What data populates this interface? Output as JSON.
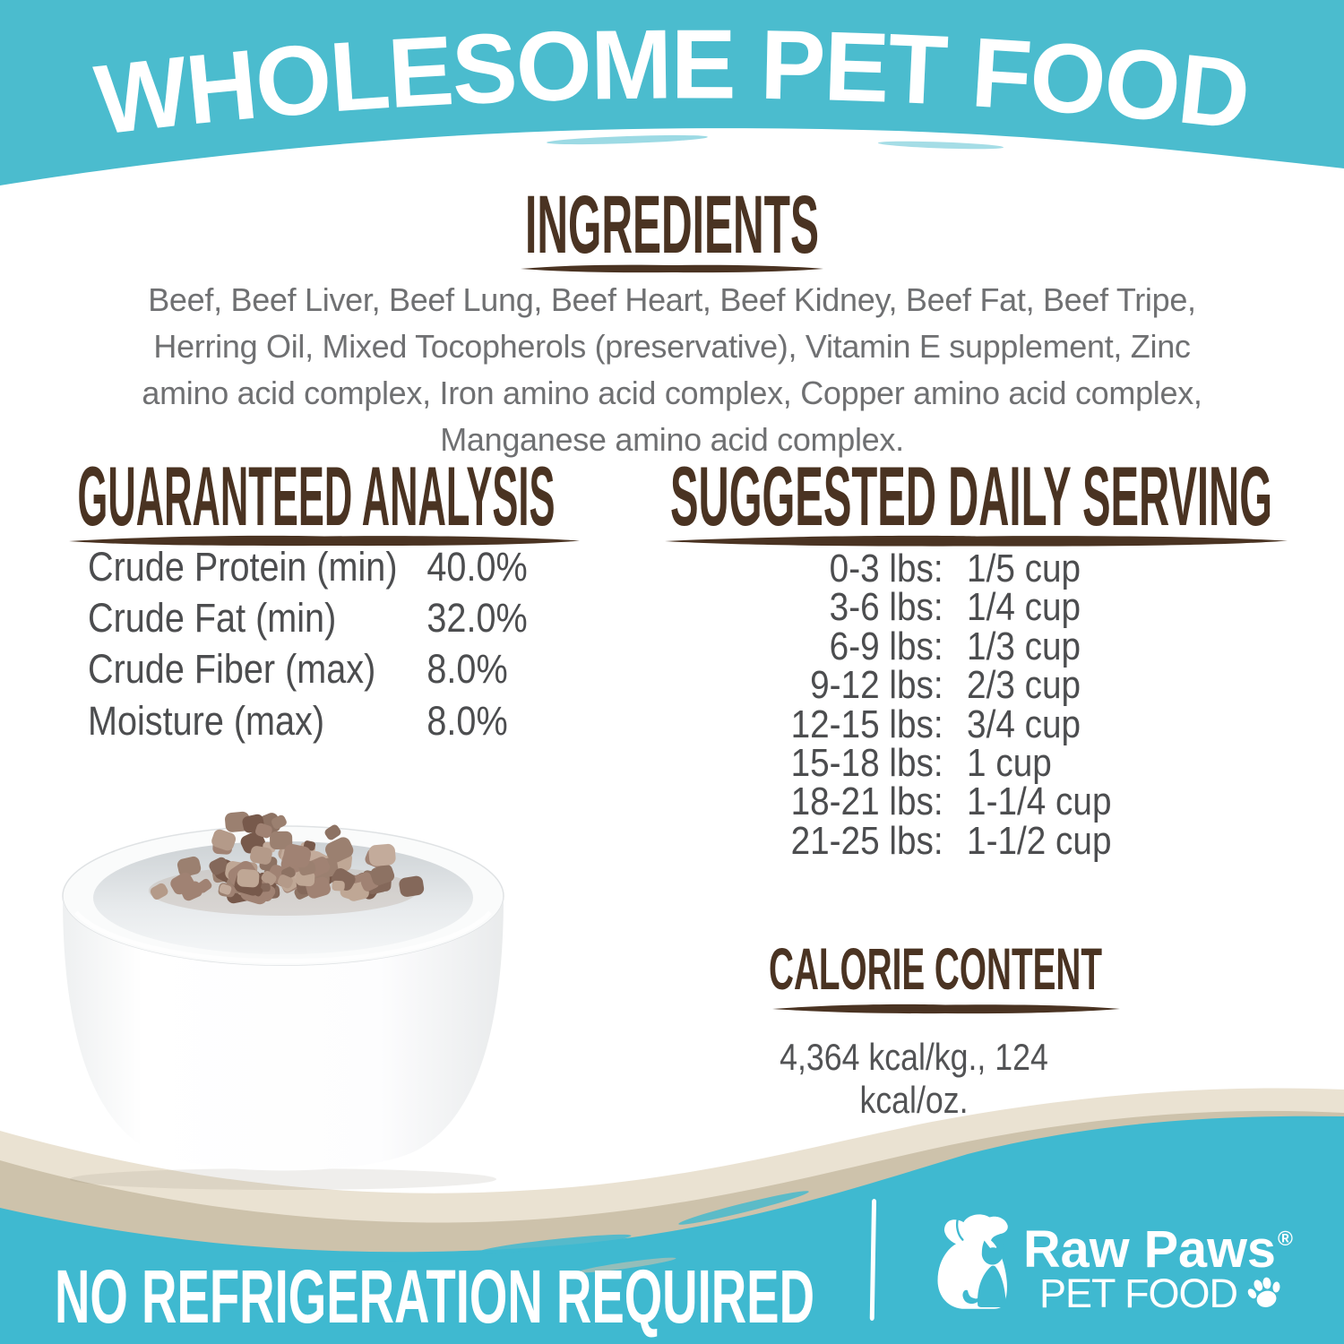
{
  "header": {
    "title": "WHOLESOME PET FOOD"
  },
  "ingredients": {
    "heading": "INGREDIENTS",
    "text": "Beef, Beef Liver, Beef Lung, Beef Heart, Beef Kidney, Beef Fat, Beef Tripe,\nHerring Oil, Mixed Tocopherols (preservative), Vitamin E supplement, Zinc\namino acid complex, Iron amino acid complex, Copper amino acid complex,\nManganese amino acid complex."
  },
  "analysis": {
    "heading": "GUARANTEED ANALYSIS",
    "rows": [
      {
        "label": "Crude Protein (min)",
        "value": "40.0%"
      },
      {
        "label": "Crude Fat (min)",
        "value": "32.0%"
      },
      {
        "label": "Crude Fiber (max)",
        "value": "8.0%"
      },
      {
        "label": "Moisture (max)",
        "value": "8.0%"
      }
    ]
  },
  "serving": {
    "heading": "SUGGESTED DAILY SERVING",
    "rows": [
      {
        "range": "0-3 lbs:",
        "amount": "1/5 cup"
      },
      {
        "range": "3-6 lbs:",
        "amount": "1/4 cup"
      },
      {
        "range": "6-9 lbs:",
        "amount": "1/3 cup"
      },
      {
        "range": "9-12 lbs:",
        "amount": "2/3 cup"
      },
      {
        "range": "12-15 lbs:",
        "amount": "3/4 cup"
      },
      {
        "range": "15-18 lbs:",
        "amount": "1 cup"
      },
      {
        "range": "18-21 lbs:",
        "amount": "1-1/4 cup"
      },
      {
        "range": "21-25 lbs:",
        "amount": "1-1/2 cup"
      }
    ]
  },
  "calories": {
    "heading": "CALORIE CONTENT",
    "value": "4,364 kcal/kg., 124 kcal/oz."
  },
  "footer": {
    "claim": "NO REFRIGERATION REQUIRED",
    "brand": {
      "name": "Raw Paws",
      "reg": "®",
      "tagline": "PET FOOD"
    }
  },
  "colors": {
    "header_teal": "#4BBCCE",
    "footer_teal": "#3FB9D0",
    "heading_brown": "#4A3322",
    "body_gray": "#6F7072",
    "table_gray": "#4C4D4F",
    "wave_cream": "#EAE2D2",
    "wave_taupe": "#CDC2AB",
    "kibble": [
      "#a08273",
      "#8d7263",
      "#77594b",
      "#b49a89",
      "#c3ab9b",
      "#9b8070",
      "#84685a",
      "#bfa795"
    ]
  }
}
